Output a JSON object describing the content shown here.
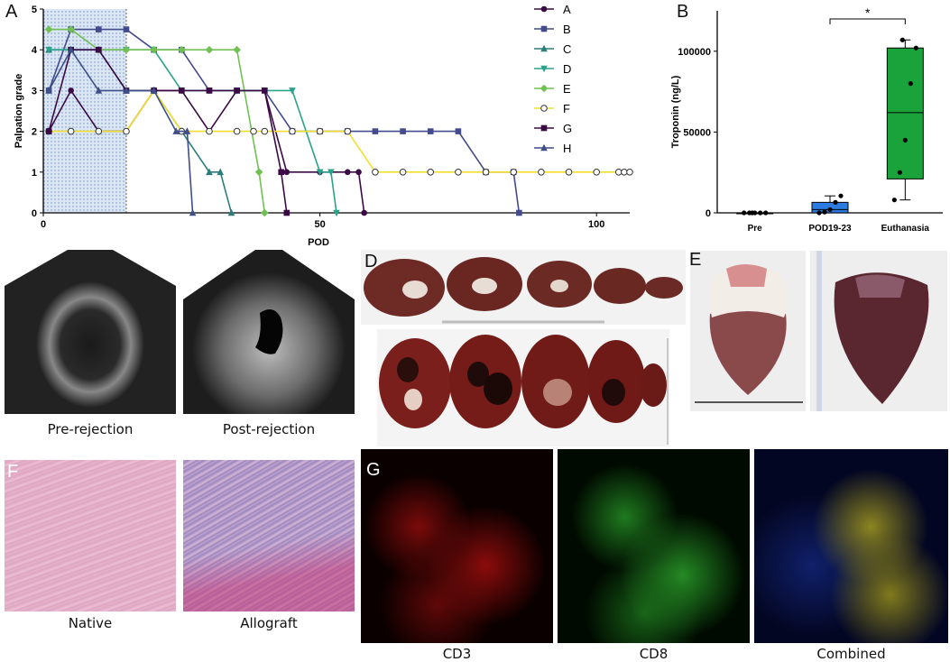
{
  "panels": {
    "A": {
      "label": "A"
    },
    "B": {
      "label": "B"
    },
    "C": {
      "label": "C",
      "captions": [
        "Pre-rejection",
        "Post-rejection"
      ]
    },
    "D": {
      "label": "D"
    },
    "E": {
      "label": "E"
    },
    "F": {
      "label": "F",
      "captions": [
        "Native",
        "Allograft"
      ]
    },
    "G": {
      "label": "G",
      "captions": [
        "CD3",
        "CD8",
        "Combined"
      ]
    }
  },
  "chart_data": [
    {
      "type": "line",
      "panel": "A",
      "title": "",
      "xlabel": "POD",
      "ylabel": "Palpation grade",
      "xlim": [
        0,
        106
      ],
      "ylim": [
        0,
        5
      ],
      "xticks": [
        0,
        50,
        100
      ],
      "yticks": [
        0,
        1,
        2,
        3,
        4,
        5
      ],
      "shaded_region": [
        0,
        15
      ],
      "legend_position": "right",
      "series": [
        {
          "name": "A",
          "color": "#3b0a45",
          "marker": "circle",
          "points": [
            [
              1,
              2
            ],
            [
              5,
              3
            ],
            [
              10,
              2
            ],
            [
              15,
              2
            ],
            [
              20,
              3
            ],
            [
              25,
              3
            ],
            [
              30,
              2
            ],
            [
              35,
              3
            ],
            [
              40,
              3
            ],
            [
              44,
              1
            ],
            [
              50,
              1
            ],
            [
              55,
              1
            ],
            [
              57,
              1
            ],
            [
              58,
              0
            ]
          ]
        },
        {
          "name": "B",
          "color": "#434b8c",
          "marker": "square",
          "points": [
            [
              1,
              3
            ],
            [
              5,
              4.5
            ],
            [
              10,
              4.5
            ],
            [
              15,
              4.5
            ],
            [
              20,
              4
            ],
            [
              25,
              4
            ],
            [
              30,
              3
            ],
            [
              35,
              3
            ],
            [
              40,
              3
            ],
            [
              45,
              2
            ],
            [
              50,
              2
            ],
            [
              55,
              2
            ],
            [
              60,
              2
            ],
            [
              65,
              2
            ],
            [
              70,
              2
            ],
            [
              75,
              2
            ],
            [
              80,
              1
            ],
            [
              85,
              1
            ],
            [
              86,
              0
            ]
          ]
        },
        {
          "name": "C",
          "color": "#2a7d7a",
          "marker": "triangle",
          "points": [
            [
              1,
              4
            ],
            [
              5,
              4
            ],
            [
              10,
              4
            ],
            [
              15,
              3
            ],
            [
              20,
              3
            ],
            [
              25,
              2
            ],
            [
              30,
              1
            ],
            [
              32,
              1
            ],
            [
              34,
              0
            ]
          ]
        },
        {
          "name": "D",
          "color": "#2aa38a",
          "marker": "triangle-down",
          "points": [
            [
              1,
              4
            ],
            [
              5,
              4
            ],
            [
              10,
              4
            ],
            [
              15,
              4
            ],
            [
              20,
              4
            ],
            [
              25,
              3
            ],
            [
              30,
              3
            ],
            [
              35,
              3
            ],
            [
              40,
              3
            ],
            [
              45,
              3
            ],
            [
              50,
              1
            ],
            [
              52,
              1
            ],
            [
              53,
              0
            ]
          ]
        },
        {
          "name": "E",
          "color": "#72c054",
          "marker": "diamond",
          "points": [
            [
              1,
              4.5
            ],
            [
              5,
              4.5
            ],
            [
              10,
              4
            ],
            [
              15,
              4
            ],
            [
              20,
              4
            ],
            [
              25,
              4
            ],
            [
              30,
              4
            ],
            [
              35,
              4
            ],
            [
              39,
              1
            ],
            [
              40,
              0
            ]
          ]
        },
        {
          "name": "F",
          "color": "#f2df2d",
          "marker": "circle-open",
          "points": [
            [
              1,
              2
            ],
            [
              5,
              2
            ],
            [
              10,
              2
            ],
            [
              15,
              2
            ],
            [
              20,
              3
            ],
            [
              25,
              2
            ],
            [
              30,
              2
            ],
            [
              35,
              2
            ],
            [
              38,
              2
            ],
            [
              40,
              2
            ],
            [
              45,
              2
            ],
            [
              50,
              2
            ],
            [
              55,
              2
            ],
            [
              60,
              1
            ],
            [
              65,
              1
            ],
            [
              70,
              1
            ],
            [
              75,
              1
            ],
            [
              80,
              1
            ],
            [
              85,
              1
            ],
            [
              90,
              1
            ],
            [
              95,
              1
            ],
            [
              100,
              1
            ],
            [
              104,
              1
            ],
            [
              105,
              1
            ],
            [
              106,
              1
            ]
          ]
        },
        {
          "name": "G",
          "color": "#3b0a45",
          "marker": "square",
          "points": [
            [
              1,
              2
            ],
            [
              5,
              4
            ],
            [
              10,
              4
            ],
            [
              15,
              3
            ],
            [
              20,
              3
            ],
            [
              25,
              3
            ],
            [
              30,
              3
            ],
            [
              35,
              3
            ],
            [
              40,
              3
            ],
            [
              43,
              1
            ],
            [
              44,
              0
            ]
          ]
        },
        {
          "name": "H",
          "color": "#3e4f87",
          "marker": "triangle",
          "points": [
            [
              1,
              3
            ],
            [
              5,
              4
            ],
            [
              10,
              3
            ],
            [
              15,
              3
            ],
            [
              20,
              3
            ],
            [
              24,
              2
            ],
            [
              26,
              2
            ],
            [
              27,
              0
            ]
          ]
        }
      ]
    },
    {
      "type": "box",
      "panel": "B",
      "title": "",
      "xlabel": "",
      "ylabel": "Troponin (ng/L)",
      "ylim": [
        0,
        125000
      ],
      "yticks": [
        0,
        50000,
        100000
      ],
      "ytick_labels": [
        "0",
        "50000",
        "100000"
      ],
      "categories": [
        "Pre",
        "POD19-23",
        "Euthanasia"
      ],
      "colors": [
        "#1f4fa0",
        "#2b7be0",
        "#1aa33a"
      ],
      "boxes": [
        {
          "min": 0,
          "q1": 0,
          "median": 0,
          "q3": 0,
          "max": 0,
          "points": [
            0,
            0,
            0,
            0,
            0,
            0
          ]
        },
        {
          "min": 0,
          "q1": 0,
          "median": 2000,
          "q3": 6500,
          "max": 10500,
          "points": [
            0,
            500,
            2000,
            6500,
            10500
          ]
        },
        {
          "min": 8000,
          "q1": 21000,
          "median": 62000,
          "q3": 102000,
          "max": 107000,
          "points": [
            8000,
            25000,
            45000,
            80000,
            102000,
            107000
          ]
        }
      ],
      "significance": {
        "between": [
          "POD19-23",
          "Euthanasia"
        ],
        "label": "*"
      }
    }
  ]
}
